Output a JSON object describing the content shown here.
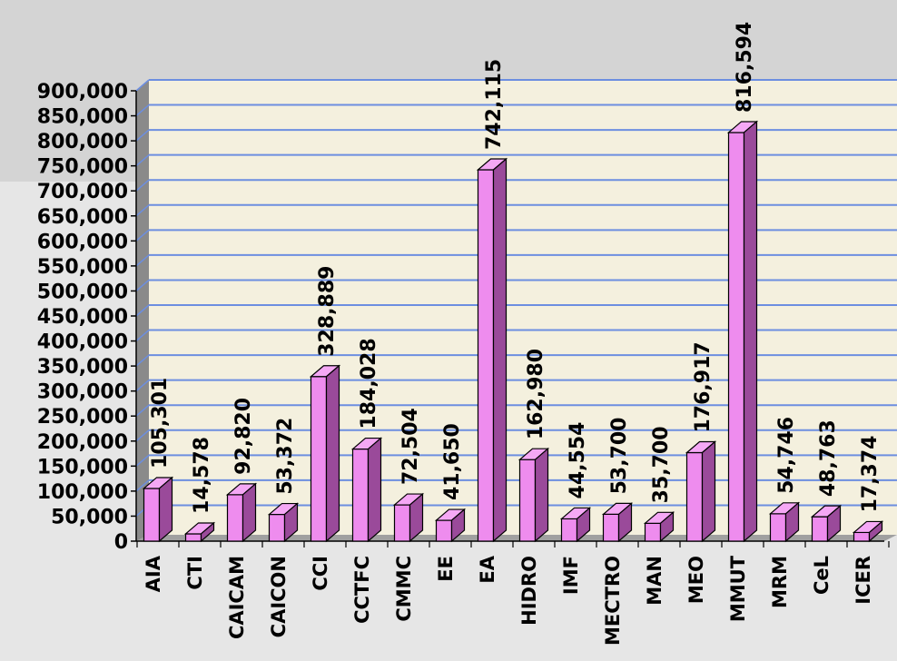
{
  "chart_data": {
    "type": "bar",
    "categories": [
      "AIA",
      "CTI",
      "CAICAM",
      "CAICON",
      "CCI",
      "CCTFC",
      "CMMC",
      "EE",
      "EA",
      "HIDRO",
      "IMF",
      "MECTRO",
      "MAN",
      "MEO",
      "MMUT",
      "MRM",
      "CeL",
      "ICER"
    ],
    "values": [
      105301,
      14578,
      92820,
      53372,
      328889,
      184028,
      72504,
      41650,
      742115,
      162980,
      44554,
      53700,
      35700,
      176917,
      816594,
      54746,
      48763,
      17374
    ],
    "value_labels": [
      "105,301",
      "14,578",
      "92,820",
      "53,372",
      "328,889",
      "184,028",
      "72,504",
      "41,650",
      "742,115",
      "162,980",
      "44,554",
      "53,700",
      "35,700",
      "176,917",
      "816,594",
      "54,746",
      "48,763",
      "17,374"
    ],
    "ylim": [
      0,
      900000
    ],
    "yticks": [
      0,
      50000,
      100000,
      150000,
      200000,
      250000,
      300000,
      350000,
      400000,
      450000,
      500000,
      550000,
      600000,
      650000,
      700000,
      750000,
      800000,
      850000,
      900000
    ],
    "ytick_labels": [
      "0",
      "50,000",
      "100,000",
      "150,000",
      "200,000",
      "250,000",
      "300,000",
      "350,000",
      "400,000",
      "450,000",
      "500,000",
      "550,000",
      "600,000",
      "650,000",
      "700,000",
      "750,000",
      "800,000",
      "850,000",
      "900,000"
    ],
    "grid": true,
    "legend": "none",
    "colors": {
      "bar_front": "#ee8cee",
      "bar_top": "#f5a8f5",
      "bar_side": "#9a4a9a",
      "plot_bg": "#f4f0de",
      "wall_side": "#8a8a8a",
      "floor": "#a0a0a0",
      "grid": "#6c8ee0"
    }
  }
}
